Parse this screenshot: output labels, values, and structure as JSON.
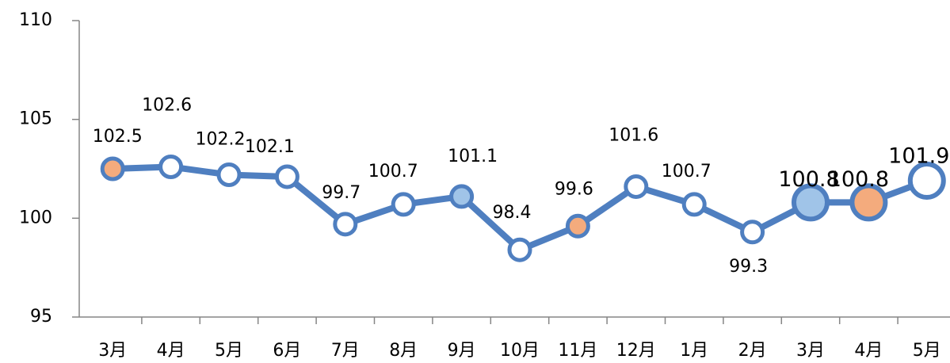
{
  "chart_data": {
    "type": "line",
    "categories": [
      "3月",
      "4月",
      "5月",
      "6月",
      "7月",
      "8月",
      "9月",
      "10月",
      "11月",
      "12月",
      "1月",
      "2月",
      "3月",
      "4月",
      "5月"
    ],
    "series": [
      {
        "color": "#4f7fc0",
        "values": [
          102.5,
          102.6,
          102.2,
          102.1,
          99.7,
          100.7,
          101.1,
          98.4,
          99.6,
          101.6,
          100.7,
          99.3,
          100.8,
          100.8,
          101.9
        ],
        "marker_colors": [
          "#f4ab7d",
          "#ffffff",
          "#ffffff",
          "#ffffff",
          "#ffffff",
          "#ffffff",
          "#a0c4e8",
          "#ffffff",
          "#f4ab7d",
          "#ffffff",
          "#ffffff",
          "#ffffff",
          "#a0c4e8",
          "#f4ab7d",
          "#ffffff"
        ],
        "marker_sizes": [
          "normal",
          "normal",
          "normal",
          "normal",
          "normal",
          "normal",
          "normal",
          "normal",
          "normal",
          "normal",
          "normal",
          "normal",
          "large",
          "large",
          "large"
        ]
      }
    ],
    "ylim": [
      95,
      110
    ],
    "yticks": [
      95,
      100,
      105,
      110
    ]
  }
}
